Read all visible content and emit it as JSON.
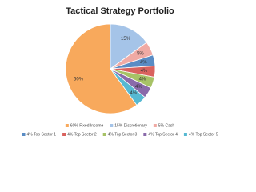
{
  "chart_data": {
    "type": "pie",
    "title": "Tactical Strategy Portfolio",
    "categories": [
      "60% Fixed Income",
      "15% Discretionary",
      "5% Cash",
      "4% Top Sector 1",
      "4% Top Sector 2",
      "4% Top Sector 3",
      "4% Top Sector 4",
      "4% Top Sector 5"
    ],
    "values": [
      60,
      15,
      5,
      4,
      4,
      4,
      4,
      4
    ],
    "value_labels": [
      "60%",
      "15%",
      "5%",
      "4%",
      "4%",
      "4%",
      "4%",
      "4%"
    ],
    "colors": [
      "#f8a95c",
      "#a5c4e8",
      "#f0aaa4",
      "#5a8cc4",
      "#d9625e",
      "#a7c266",
      "#8a6aaa",
      "#56b9d2"
    ],
    "legend": "bottom"
  }
}
